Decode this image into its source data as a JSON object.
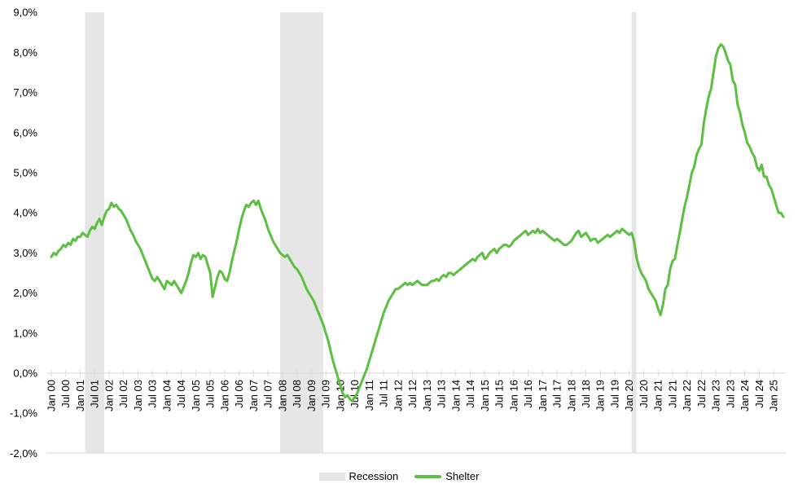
{
  "chart_data": {
    "type": "line",
    "title": "",
    "xlabel": "",
    "ylabel": "",
    "number_format": "comma-decimal-percent",
    "y_axis_range_pct": [
      -2.0,
      9.0
    ],
    "y_tick_step_pct": 1.0,
    "y_tick_labels": [
      "9,0%",
      "8,0%",
      "7,0%",
      "6,0%",
      "5,0%",
      "4,0%",
      "3,0%",
      "2,0%",
      "1,0%",
      "0,0%",
      "-1,0%",
      "-2,0%"
    ],
    "x_start_month": "2000-01",
    "x_end_month": "2025-05",
    "x_tick_interval_months": 6,
    "x_tick_labels": [
      "Jan 00",
      "Jul 00",
      "Jan 01",
      "Jul 01",
      "Jan 02",
      "Jul 02",
      "Jan 03",
      "Jul 03",
      "Jan 04",
      "Jul 04",
      "Jan 05",
      "Jul 05",
      "Jan 06",
      "Jul 06",
      "Jan 07",
      "Jul 07",
      "Jan 08",
      "Jul 08",
      "Jan 09",
      "Jul 09",
      "Jan 10",
      "Jul 10",
      "Jan 11",
      "Jul 11",
      "Jan 12",
      "Jul 12",
      "Jan 13",
      "Jul 13",
      "Jan 14",
      "Jul 14",
      "Jan 15",
      "Jul 15",
      "Jan 16",
      "Jul 16",
      "Jan 17",
      "Jul 17",
      "Jan 18",
      "Jul 18",
      "Jan 19",
      "Jul 19",
      "Jan 20",
      "Jul 20",
      "Jan 21",
      "Jul 21",
      "Jan 22",
      "Jul 22",
      "Jan 23",
      "Jul 23",
      "Jan 24",
      "Jul 24",
      "Jan 25"
    ],
    "recessions": [
      {
        "start": "2001-03",
        "end": "2001-11"
      },
      {
        "start": "2007-12",
        "end": "2009-06"
      },
      {
        "start": "2020-02",
        "end": "2020-04"
      }
    ],
    "legend": [
      {
        "label": "Recession",
        "swatch": "gray-band"
      },
      {
        "label": "Shelter",
        "swatch": "green-line"
      }
    ],
    "series": [
      {
        "name": "Shelter",
        "color": "#5cbf42",
        "cadence": "monthly",
        "monthly_values_pct": [
          2.9,
          3.0,
          2.95,
          3.05,
          3.1,
          3.2,
          3.15,
          3.25,
          3.2,
          3.35,
          3.3,
          3.4,
          3.4,
          3.5,
          3.45,
          3.4,
          3.55,
          3.65,
          3.6,
          3.75,
          3.85,
          3.7,
          3.9,
          4.05,
          4.1,
          4.25,
          4.15,
          4.2,
          4.1,
          4.05,
          3.95,
          3.85,
          3.7,
          3.55,
          3.45,
          3.3,
          3.2,
          3.1,
          2.95,
          2.8,
          2.65,
          2.5,
          2.35,
          2.3,
          2.4,
          2.3,
          2.2,
          2.1,
          2.3,
          2.25,
          2.2,
          2.3,
          2.2,
          2.1,
          2.0,
          2.15,
          2.3,
          2.5,
          2.75,
          2.95,
          2.9,
          3.0,
          2.85,
          2.95,
          2.9,
          2.7,
          2.5,
          1.9,
          2.15,
          2.4,
          2.55,
          2.5,
          2.35,
          2.3,
          2.5,
          2.8,
          3.05,
          3.3,
          3.6,
          3.85,
          4.05,
          4.2,
          4.15,
          4.25,
          4.3,
          4.2,
          4.3,
          4.1,
          3.95,
          3.8,
          3.6,
          3.45,
          3.3,
          3.2,
          3.1,
          3.0,
          2.95,
          2.9,
          2.95,
          2.85,
          2.75,
          2.65,
          2.6,
          2.5,
          2.4,
          2.25,
          2.1,
          2.0,
          1.9,
          1.8,
          1.65,
          1.5,
          1.35,
          1.2,
          1.0,
          0.8,
          0.55,
          0.3,
          0.1,
          -0.1,
          -0.3,
          -0.5,
          -0.6,
          -0.55,
          -0.65,
          -0.7,
          -0.6,
          -0.5,
          -0.35,
          -0.2,
          -0.05,
          0.1,
          0.3,
          0.5,
          0.7,
          0.9,
          1.1,
          1.3,
          1.5,
          1.65,
          1.8,
          1.9,
          2.0,
          2.1,
          2.1,
          2.15,
          2.2,
          2.25,
          2.2,
          2.25,
          2.2,
          2.25,
          2.3,
          2.25,
          2.2,
          2.2,
          2.2,
          2.25,
          2.3,
          2.3,
          2.35,
          2.3,
          2.4,
          2.45,
          2.4,
          2.5,
          2.5,
          2.45,
          2.5,
          2.55,
          2.6,
          2.65,
          2.7,
          2.75,
          2.8,
          2.85,
          2.8,
          2.9,
          2.95,
          3.0,
          2.85,
          2.9,
          3.0,
          3.05,
          3.1,
          3.0,
          3.1,
          3.15,
          3.2,
          3.2,
          3.15,
          3.2,
          3.3,
          3.35,
          3.4,
          3.45,
          3.5,
          3.55,
          3.45,
          3.5,
          3.55,
          3.5,
          3.6,
          3.5,
          3.55,
          3.5,
          3.45,
          3.4,
          3.35,
          3.3,
          3.35,
          3.3,
          3.25,
          3.2,
          3.2,
          3.25,
          3.3,
          3.4,
          3.5,
          3.55,
          3.4,
          3.45,
          3.5,
          3.4,
          3.3,
          3.35,
          3.35,
          3.25,
          3.3,
          3.35,
          3.4,
          3.45,
          3.4,
          3.45,
          3.5,
          3.55,
          3.5,
          3.6,
          3.55,
          3.5,
          3.45,
          3.5,
          3.3,
          2.9,
          2.65,
          2.5,
          2.4,
          2.3,
          2.1,
          2.0,
          1.9,
          1.8,
          1.6,
          1.45,
          1.7,
          2.1,
          2.2,
          2.6,
          2.8,
          2.85,
          3.2,
          3.5,
          3.85,
          4.15,
          4.4,
          4.7,
          5.0,
          5.15,
          5.45,
          5.6,
          5.7,
          6.25,
          6.6,
          6.9,
          7.1,
          7.5,
          7.9,
          8.1,
          8.2,
          8.15,
          8.0,
          7.8,
          7.7,
          7.3,
          7.2,
          6.7,
          6.5,
          6.2,
          6.0,
          5.75,
          5.65,
          5.5,
          5.4,
          5.15,
          5.05,
          5.2,
          4.9,
          4.9,
          4.7,
          4.6,
          4.4,
          4.2,
          4.0,
          4.0,
          3.9
        ]
      }
    ],
    "colors": {
      "line": "#5cbf42",
      "recession_band": "#e6e6e6",
      "axis": "#d9d9d9",
      "text": "#000000",
      "background": "#ffffff"
    },
    "layout_hints": {
      "gridlines": "off",
      "legend_position": "bottom-center",
      "x_labels_rotation_deg": -90
    }
  }
}
